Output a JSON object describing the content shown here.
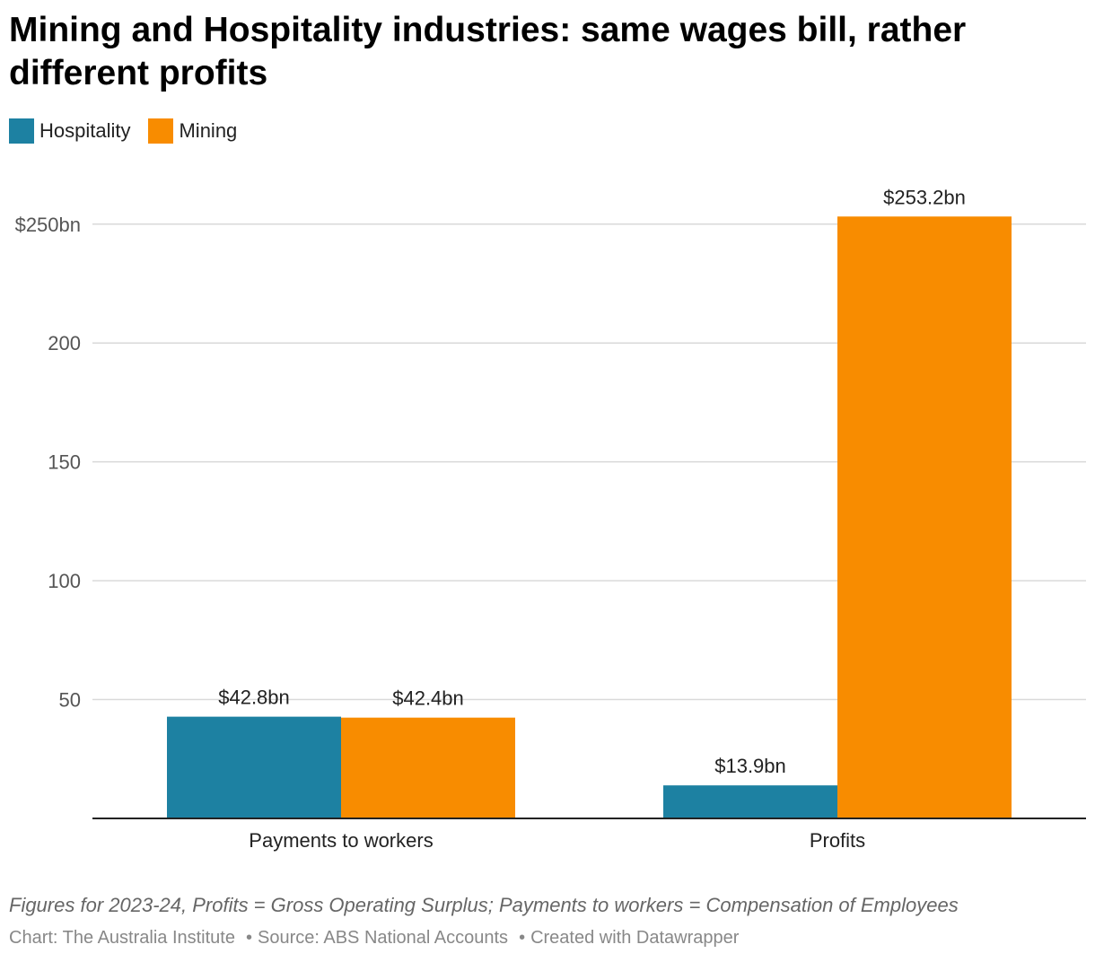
{
  "title": "Mining and Hospitality industries: same wages bill, rather different profits",
  "legend": [
    {
      "label": "Hospitality",
      "color": "#1d81a2"
    },
    {
      "label": "Mining",
      "color": "#f88c00"
    }
  ],
  "chart_data": {
    "type": "bar",
    "title": "Mining and Hospitality industries: same wages bill, rather different profits",
    "categories": [
      "Payments to workers",
      "Profits"
    ],
    "series": [
      {
        "name": "Hospitality",
        "color": "#1d81a2",
        "values": [
          42.8,
          13.9
        ],
        "labels": [
          "$42.8bn",
          "$13.9bn"
        ]
      },
      {
        "name": "Mining",
        "color": "#f88c00",
        "values": [
          42.4,
          253.2
        ],
        "labels": [
          "$42.4bn",
          "$253.2bn"
        ]
      }
    ],
    "yticks": [
      {
        "value": 50,
        "label": "50"
      },
      {
        "value": 100,
        "label": "100"
      },
      {
        "value": 150,
        "label": "150"
      },
      {
        "value": 200,
        "label": "200"
      },
      {
        "value": 250,
        "label": "$250bn"
      }
    ],
    "ylim": [
      0,
      275
    ],
    "grid": true,
    "legend_position": "top-left"
  },
  "notes": "Figures for 2023-24, Profits = Gross Operating Surplus; Payments to workers = Compensation of Employees",
  "footer": {
    "chart_credit": "Chart: The Australia Institute",
    "source": "Source: ABS National Accounts",
    "created": "Created with Datawrapper",
    "separator": "•"
  }
}
